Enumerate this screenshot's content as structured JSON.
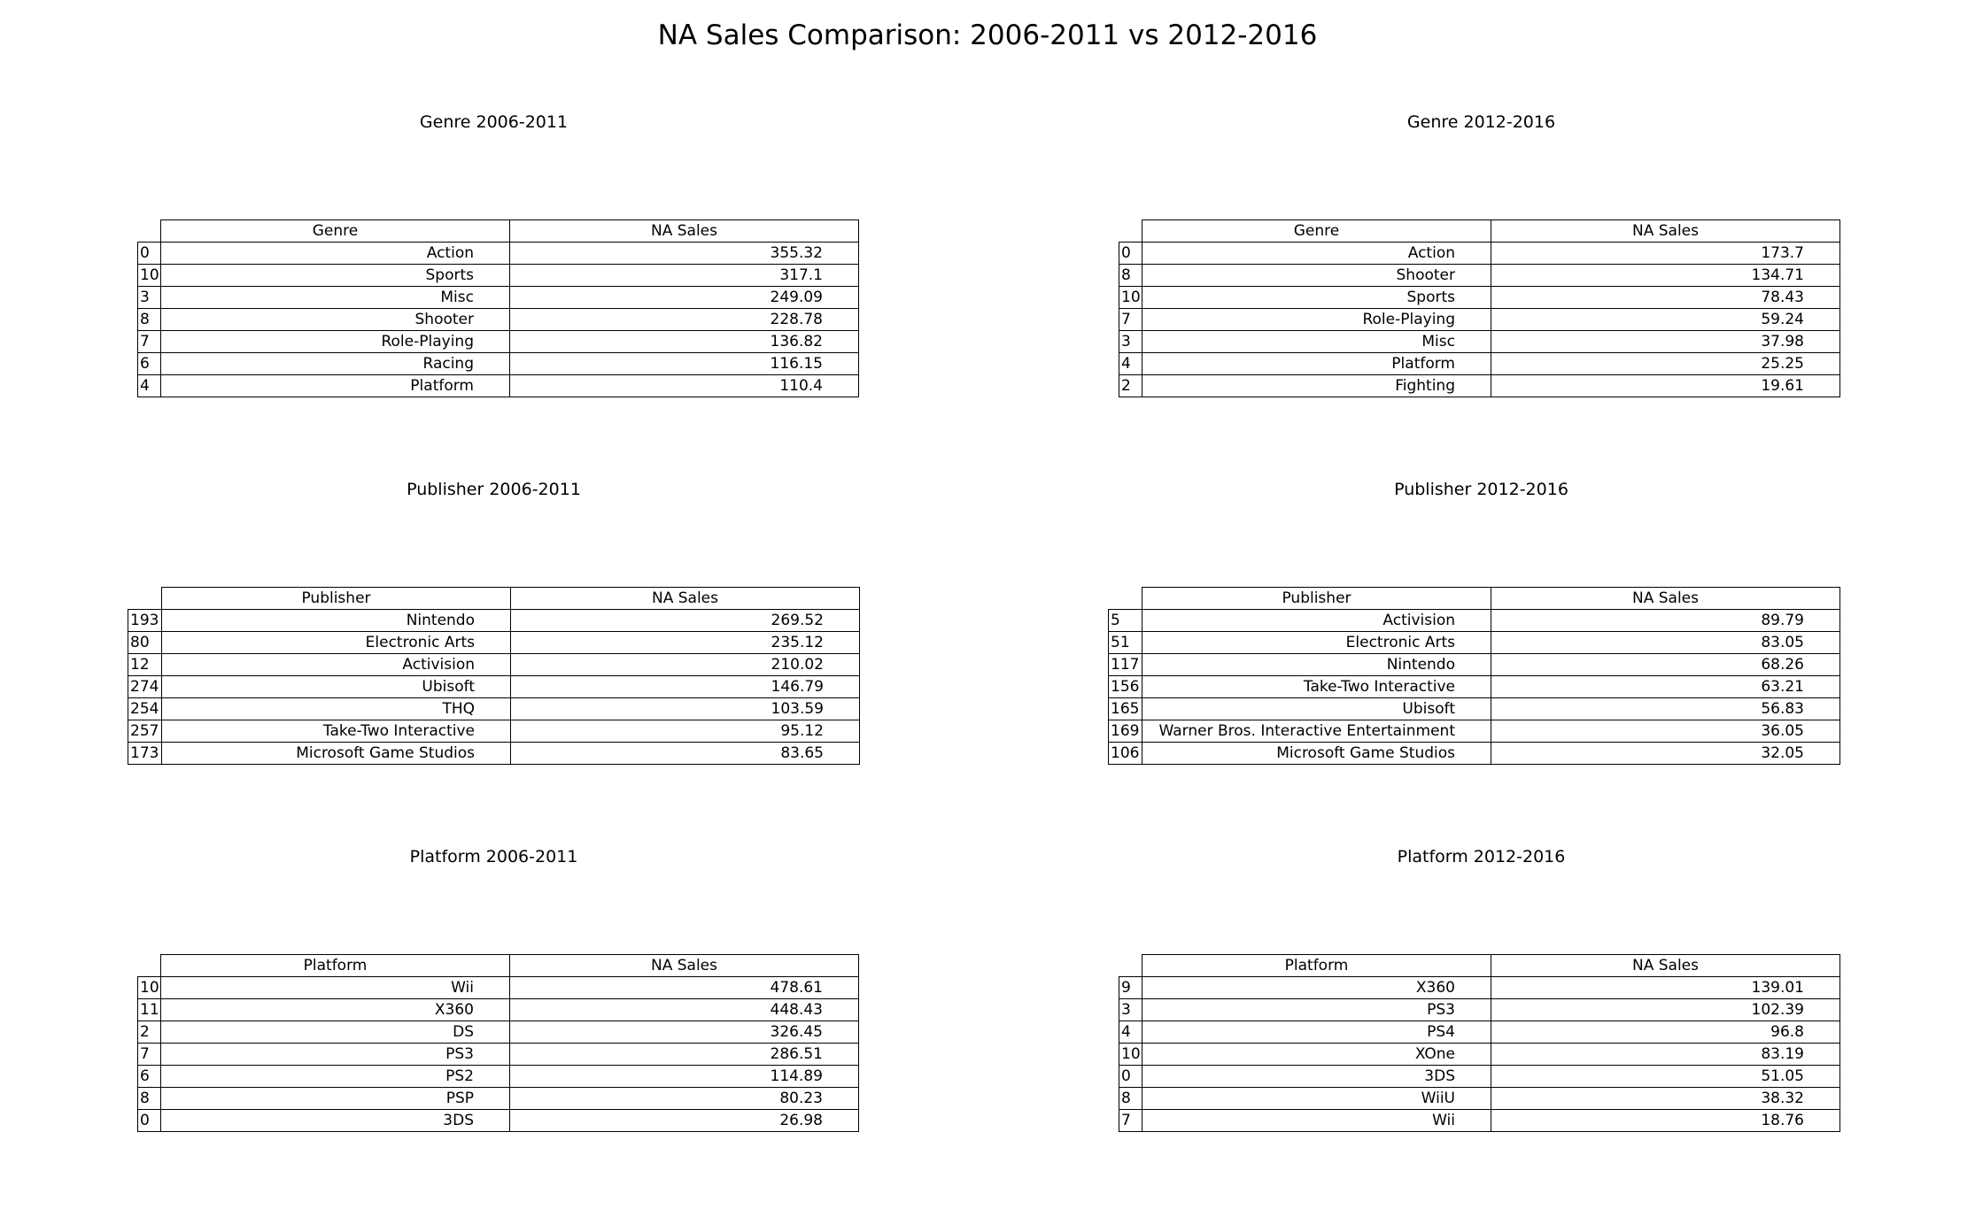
{
  "title": "NA Sales Comparison: 2006-2011 vs 2012-2016",
  "chart_data": [
    {
      "type": "table",
      "title": "Genre 2006-2011",
      "columns": [
        "Genre",
        "NA Sales"
      ],
      "rows": [
        {
          "index": "0",
          "name": "Action",
          "value": "355.32"
        },
        {
          "index": "10",
          "name": "Sports",
          "value": "317.1"
        },
        {
          "index": "3",
          "name": "Misc",
          "value": "249.09"
        },
        {
          "index": "8",
          "name": "Shooter",
          "value": "228.78"
        },
        {
          "index": "7",
          "name": "Role-Playing",
          "value": "136.82"
        },
        {
          "index": "6",
          "name": "Racing",
          "value": "116.15"
        },
        {
          "index": "4",
          "name": "Platform",
          "value": "110.4"
        }
      ]
    },
    {
      "type": "table",
      "title": "Genre 2012-2016",
      "columns": [
        "Genre",
        "NA Sales"
      ],
      "rows": [
        {
          "index": "0",
          "name": "Action",
          "value": "173.7"
        },
        {
          "index": "8",
          "name": "Shooter",
          "value": "134.71"
        },
        {
          "index": "10",
          "name": "Sports",
          "value": "78.43"
        },
        {
          "index": "7",
          "name": "Role-Playing",
          "value": "59.24"
        },
        {
          "index": "3",
          "name": "Misc",
          "value": "37.98"
        },
        {
          "index": "4",
          "name": "Platform",
          "value": "25.25"
        },
        {
          "index": "2",
          "name": "Fighting",
          "value": "19.61"
        }
      ]
    },
    {
      "type": "table",
      "title": "Publisher 2006-2011",
      "columns": [
        "Publisher",
        "NA Sales"
      ],
      "rows": [
        {
          "index": "193",
          "name": "Nintendo",
          "value": "269.52"
        },
        {
          "index": "80",
          "name": "Electronic Arts",
          "value": "235.12"
        },
        {
          "index": "12",
          "name": "Activision",
          "value": "210.02"
        },
        {
          "index": "274",
          "name": "Ubisoft",
          "value": "146.79"
        },
        {
          "index": "254",
          "name": "THQ",
          "value": "103.59"
        },
        {
          "index": "257",
          "name": "Take-Two Interactive",
          "value": "95.12"
        },
        {
          "index": "173",
          "name": "Microsoft Game Studios",
          "value": "83.65"
        }
      ]
    },
    {
      "type": "table",
      "title": "Publisher 2012-2016",
      "columns": [
        "Publisher",
        "NA Sales"
      ],
      "rows": [
        {
          "index": "5",
          "name": "Activision",
          "value": "89.79"
        },
        {
          "index": "51",
          "name": "Electronic Arts",
          "value": "83.05"
        },
        {
          "index": "117",
          "name": "Nintendo",
          "value": "68.26"
        },
        {
          "index": "156",
          "name": "Take-Two Interactive",
          "value": "63.21"
        },
        {
          "index": "165",
          "name": "Ubisoft",
          "value": "56.83"
        },
        {
          "index": "169",
          "name": "Warner Bros. Interactive Entertainment",
          "value": "36.05"
        },
        {
          "index": "106",
          "name": "Microsoft Game Studios",
          "value": "32.05"
        }
      ]
    },
    {
      "type": "table",
      "title": "Platform 2006-2011",
      "columns": [
        "Platform",
        "NA Sales"
      ],
      "rows": [
        {
          "index": "10",
          "name": "Wii",
          "value": "478.61"
        },
        {
          "index": "11",
          "name": "X360",
          "value": "448.43"
        },
        {
          "index": "2",
          "name": "DS",
          "value": "326.45"
        },
        {
          "index": "7",
          "name": "PS3",
          "value": "286.51"
        },
        {
          "index": "6",
          "name": "PS2",
          "value": "114.89"
        },
        {
          "index": "8",
          "name": "PSP",
          "value": "80.23"
        },
        {
          "index": "0",
          "name": "3DS",
          "value": "26.98"
        }
      ]
    },
    {
      "type": "table",
      "title": "Platform 2012-2016",
      "columns": [
        "Platform",
        "NA Sales"
      ],
      "rows": [
        {
          "index": "9",
          "name": "X360",
          "value": "139.01"
        },
        {
          "index": "3",
          "name": "PS3",
          "value": "102.39"
        },
        {
          "index": "4",
          "name": "PS4",
          "value": "96.8"
        },
        {
          "index": "10",
          "name": "XOne",
          "value": "83.19"
        },
        {
          "index": "0",
          "name": "3DS",
          "value": "51.05"
        },
        {
          "index": "8",
          "name": "WiiU",
          "value": "38.32"
        },
        {
          "index": "7",
          "name": "Wii",
          "value": "18.76"
        }
      ]
    }
  ]
}
